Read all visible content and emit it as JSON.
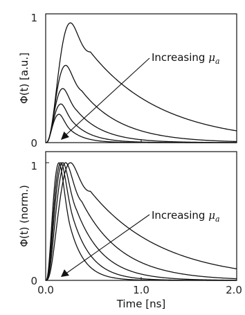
{
  "chart_data": [
    {
      "type": "line",
      "panel": "top",
      "ylabel": "Φ(t) [a.u.]",
      "xlim": [
        0,
        2.0
      ],
      "ylim": [
        0,
        1
      ],
      "yticks": [
        0,
        1
      ],
      "yticklabels": [
        "0",
        "1"
      ],
      "xtick_labels_shown": false,
      "annotation": {
        "text": "Increasing ",
        "symbol": "μ",
        "subscript": "a"
      },
      "series": [
        {
          "t_peak": 0.26,
          "peak": 0.93,
          "decay_tau": 0.75
        },
        {
          "t_peak": 0.21,
          "peak": 0.6,
          "decay_tau": 0.42
        },
        {
          "t_peak": 0.18,
          "peak": 0.42,
          "decay_tau": 0.28
        },
        {
          "t_peak": 0.16,
          "peak": 0.3,
          "decay_tau": 0.2
        },
        {
          "t_peak": 0.14,
          "peak": 0.22,
          "decay_tau": 0.15
        }
      ]
    },
    {
      "type": "line",
      "panel": "bottom",
      "ylabel": "Φ(t) (norm.)",
      "xlabel": "Time [ns]",
      "xlim": [
        0,
        2.0
      ],
      "ylim": [
        0,
        1
      ],
      "xticks": [
        0,
        1.0,
        2.0
      ],
      "xticklabels": [
        "0.0",
        "1.0",
        "2.0"
      ],
      "yticks": [
        0,
        1
      ],
      "yticklabels": [
        "0",
        "1"
      ],
      "annotation": {
        "text": "Increasing ",
        "symbol": "μ",
        "subscript": "a"
      },
      "series": [
        {
          "t_peak": 0.26,
          "peak": 1.0,
          "decay_tau": 0.75
        },
        {
          "t_peak": 0.21,
          "peak": 1.0,
          "decay_tau": 0.42
        },
        {
          "t_peak": 0.18,
          "peak": 1.0,
          "decay_tau": 0.28
        },
        {
          "t_peak": 0.16,
          "peak": 1.0,
          "decay_tau": 0.2
        },
        {
          "t_peak": 0.14,
          "peak": 1.0,
          "decay_tau": 0.15
        }
      ]
    }
  ]
}
